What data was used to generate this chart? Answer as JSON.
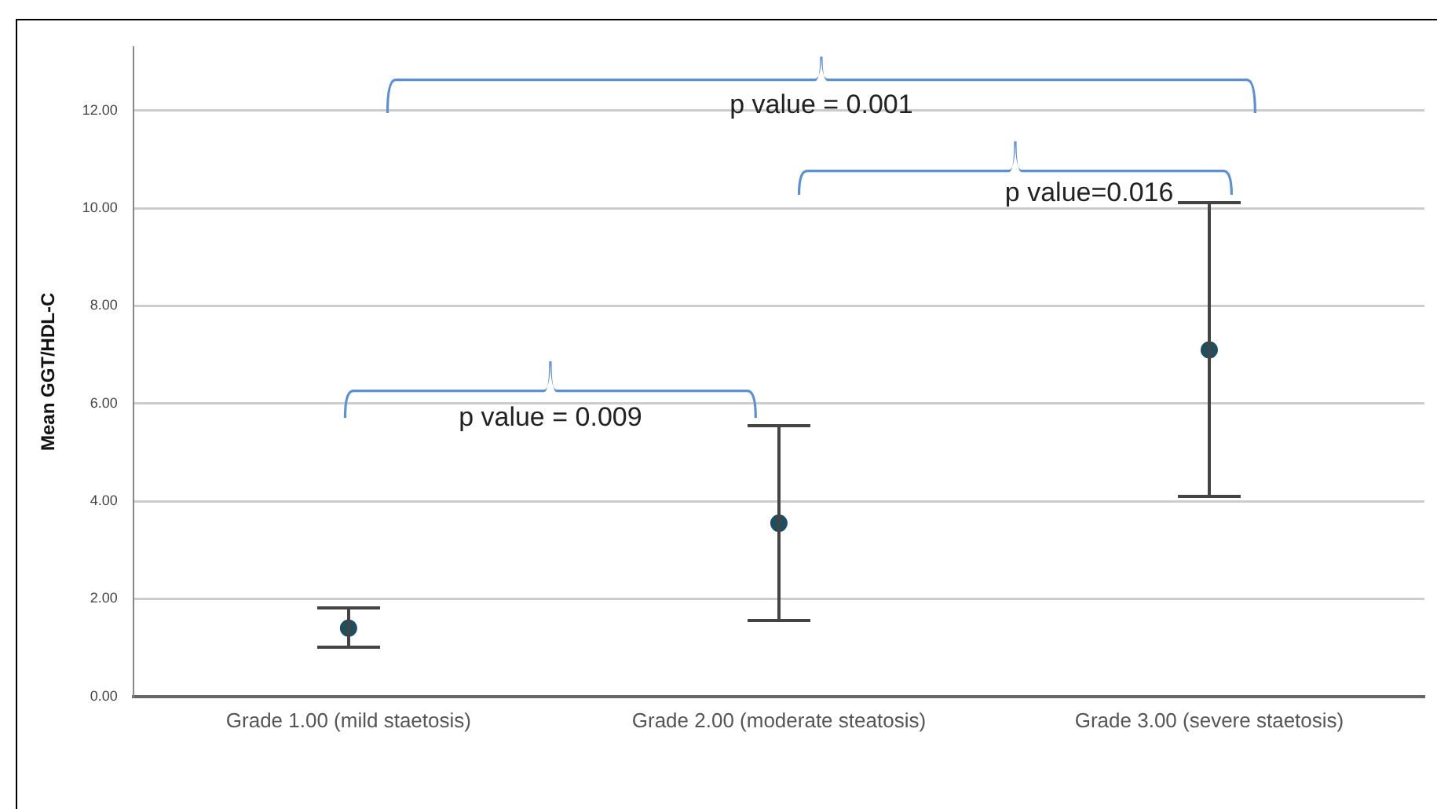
{
  "chart_data": {
    "type": "scatter",
    "ylabel": "Mean GGT/HDL-C",
    "categories": [
      "Grade 1.00 (mild staetosis)",
      "Grade 2.00 (moderate steatosis)",
      "Grade 3.00 (severe staetosis)"
    ],
    "values": [
      1.4,
      3.55,
      7.1
    ],
    "errors": [
      [
        1.0,
        1.8
      ],
      [
        1.56,
        5.54
      ],
      [
        4.1,
        10.1
      ]
    ],
    "color": "#1f4e5f",
    "marker": "circle",
    "grid": "y",
    "legend": false,
    "ylim": [
      0,
      13.3
    ],
    "yticks": [
      {
        "value": 0,
        "label": "0.00"
      },
      {
        "value": 2,
        "label": "2.00"
      },
      {
        "value": 4,
        "label": "4.00"
      },
      {
        "value": 6,
        "label": "6.00"
      },
      {
        "value": 8,
        "label": "8.00"
      },
      {
        "value": 10,
        "label": "10.00"
      },
      {
        "value": 12,
        "label": "12.00"
      }
    ],
    "annotations": [
      "p value = 0.001",
      "p value=0.016",
      "p value = 0.009"
    ]
  }
}
